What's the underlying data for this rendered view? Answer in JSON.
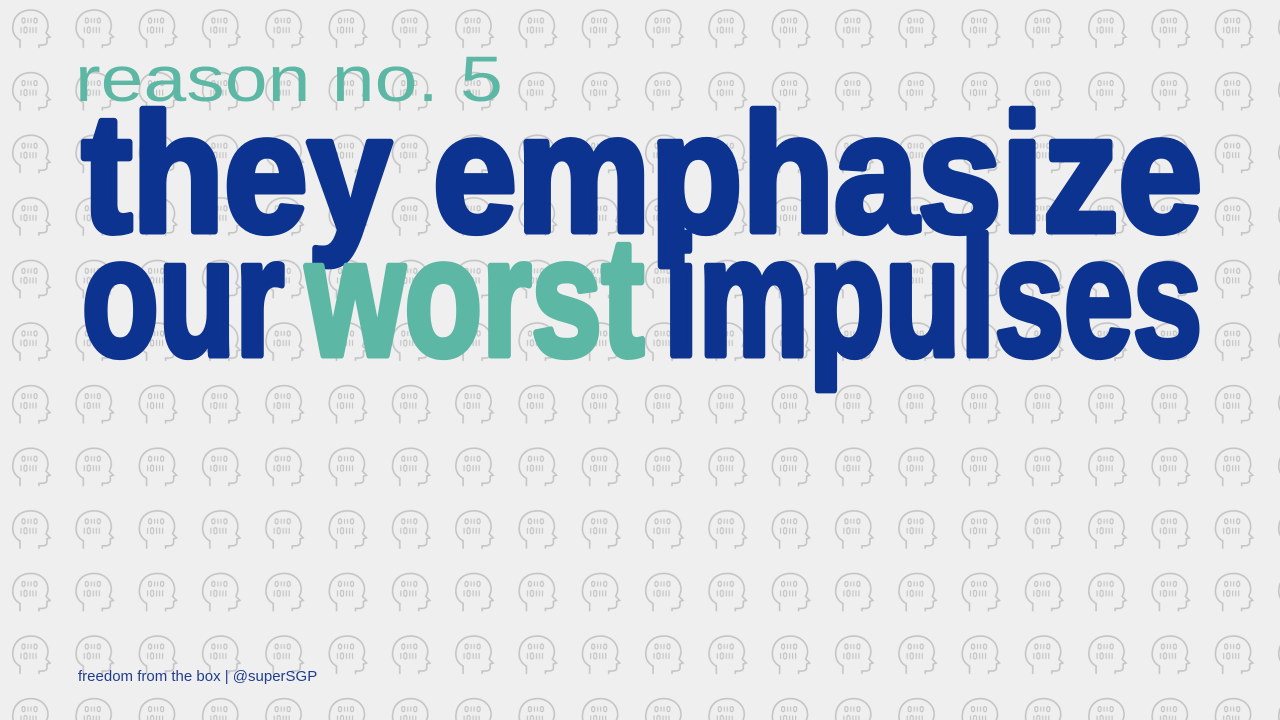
{
  "kicker": "reason no. 5",
  "headline": {
    "line1": "they emphasize",
    "line2": [
      "our",
      "worst",
      "impulses"
    ]
  },
  "footer": "freedom from the box | @superSGP"
}
